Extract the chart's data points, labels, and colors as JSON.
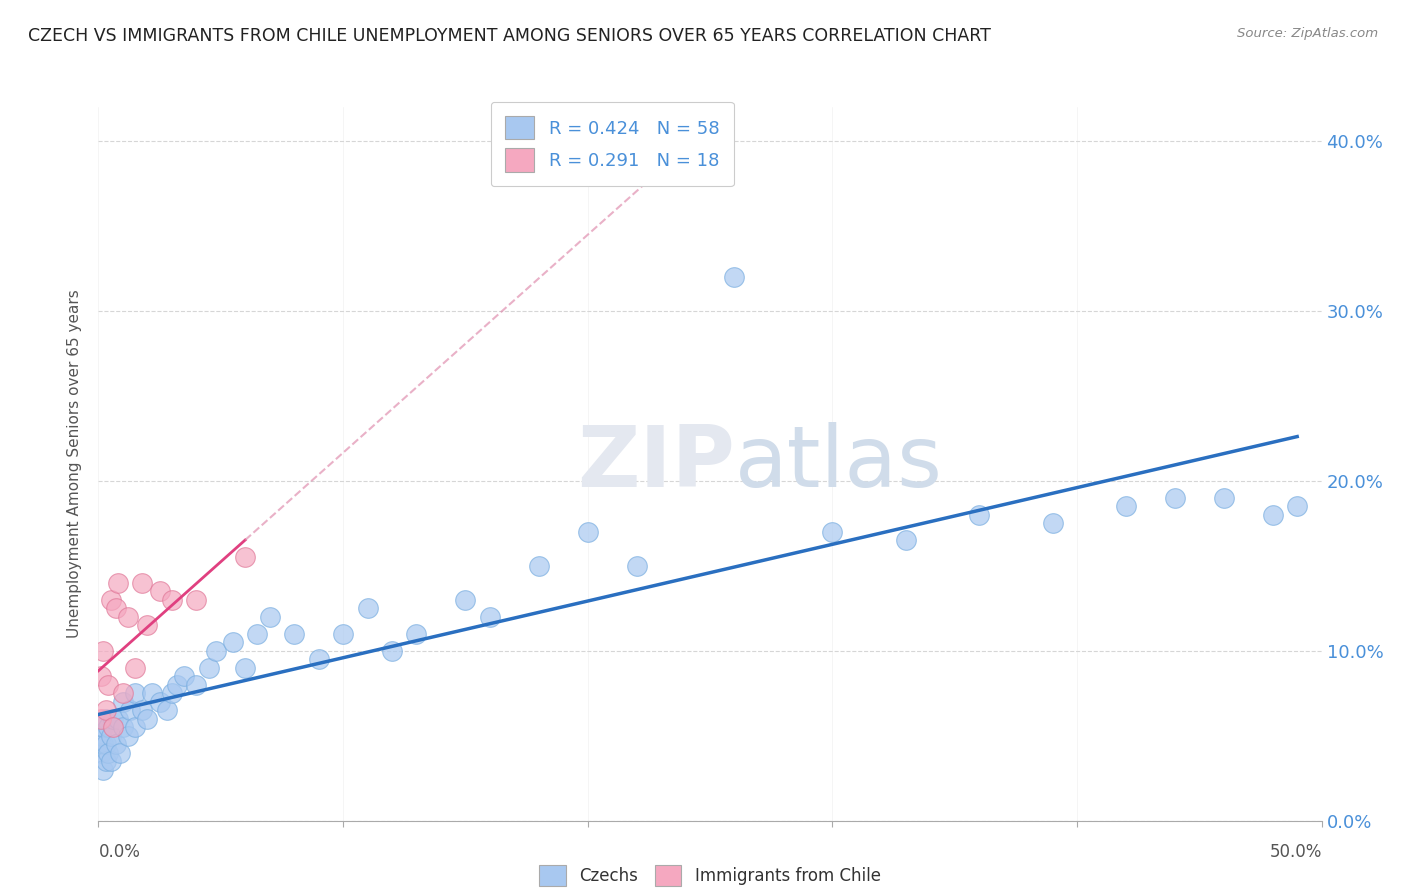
{
  "title": "CZECH VS IMMIGRANTS FROM CHILE UNEMPLOYMENT AMONG SENIORS OVER 65 YEARS CORRELATION CHART",
  "source": "Source: ZipAtlas.com",
  "ylabel": "Unemployment Among Seniors over 65 years",
  "legend_czechs_R": "0.424",
  "legend_czechs_N": "58",
  "legend_chile_R": "0.291",
  "legend_chile_N": "18",
  "czechs_color": "#a8c8f0",
  "czechs_edge_color": "#7aaee0",
  "chile_color": "#f5a8c0",
  "chile_edge_color": "#e07898",
  "czechs_line_color": "#2a6fc0",
  "chile_line_color": "#e04080",
  "chile_dash_color": "#e090b0",
  "background_color": "#ffffff",
  "grid_color": "#cccccc",
  "tick_color": "#4a90d9",
  "label_color": "#555555",
  "czechs_x": [
    0.001,
    0.001,
    0.002,
    0.002,
    0.002,
    0.003,
    0.003,
    0.003,
    0.004,
    0.004,
    0.005,
    0.005,
    0.006,
    0.007,
    0.008,
    0.009,
    0.01,
    0.01,
    0.012,
    0.013,
    0.015,
    0.015,
    0.018,
    0.02,
    0.022,
    0.025,
    0.028,
    0.03,
    0.032,
    0.035,
    0.04,
    0.045,
    0.048,
    0.055,
    0.06,
    0.065,
    0.07,
    0.08,
    0.09,
    0.1,
    0.11,
    0.12,
    0.13,
    0.15,
    0.16,
    0.18,
    0.2,
    0.22,
    0.26,
    0.3,
    0.33,
    0.36,
    0.39,
    0.42,
    0.44,
    0.46,
    0.48,
    0.49
  ],
  "czechs_y": [
    0.04,
    0.05,
    0.03,
    0.045,
    0.055,
    0.035,
    0.045,
    0.06,
    0.04,
    0.055,
    0.035,
    0.05,
    0.06,
    0.045,
    0.06,
    0.04,
    0.055,
    0.07,
    0.05,
    0.065,
    0.055,
    0.075,
    0.065,
    0.06,
    0.075,
    0.07,
    0.065,
    0.075,
    0.08,
    0.085,
    0.08,
    0.09,
    0.1,
    0.105,
    0.09,
    0.11,
    0.12,
    0.11,
    0.095,
    0.11,
    0.125,
    0.1,
    0.11,
    0.13,
    0.12,
    0.15,
    0.17,
    0.15,
    0.32,
    0.17,
    0.165,
    0.18,
    0.175,
    0.185,
    0.19,
    0.19,
    0.18,
    0.185
  ],
  "chile_x": [
    0.001,
    0.001,
    0.002,
    0.003,
    0.004,
    0.005,
    0.006,
    0.007,
    0.008,
    0.01,
    0.012,
    0.015,
    0.018,
    0.02,
    0.025,
    0.03,
    0.04,
    0.06
  ],
  "chile_y": [
    0.06,
    0.085,
    0.1,
    0.065,
    0.08,
    0.13,
    0.055,
    0.125,
    0.14,
    0.075,
    0.12,
    0.09,
    0.14,
    0.115,
    0.135,
    0.13,
    0.13,
    0.155
  ],
  "xlim": [
    0.0,
    0.5
  ],
  "ylim": [
    0.0,
    0.42
  ],
  "yticks": [
    0.0,
    0.1,
    0.2,
    0.3,
    0.4
  ],
  "ytick_labels": [
    "0.0%",
    "10.0%",
    "20.0%",
    "30.0%",
    "40.0%"
  ]
}
